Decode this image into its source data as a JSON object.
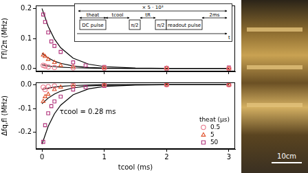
{
  "chart_data": [
    {
      "type": "scatter",
      "y_label": "Γfl/2π (MHz)",
      "xlim": [
        -0.1,
        3.1
      ],
      "xticks": [
        0,
        1,
        2,
        3
      ],
      "ylim": [
        -0.01,
        0.21
      ],
      "yticks": [
        {
          "value": 0,
          "label": "0.0"
        },
        {
          "value": 0.1,
          "label": "0.1"
        },
        {
          "value": 0.2,
          "label": "0.2"
        }
      ],
      "grid": false,
      "legend": false,
      "tick_labels": "y",
      "series": [
        {
          "color": "#e8768a",
          "marker": "circle",
          "x": [
            0.02,
            0.05,
            0.1,
            0.2,
            0.5,
            1,
            2,
            3
          ],
          "values": [
            0.01,
            0.008,
            0.005,
            0.003,
            0.002,
            0.001,
            0,
            0
          ]
        },
        {
          "color": "#e0502a",
          "marker": "triangle",
          "x": [
            0.02,
            0.05,
            0.1,
            0.2,
            0.3,
            0.5,
            1,
            2,
            3
          ],
          "values": [
            0.045,
            0.04,
            0.03,
            0.02,
            0.01,
            0.005,
            0.002,
            0.001,
            0
          ]
        },
        {
          "color": "#b0307a",
          "marker": "square",
          "x": [
            0.02,
            0.05,
            0.1,
            0.15,
            0.2,
            0.3,
            0.5,
            0.7,
            1,
            2,
            3
          ],
          "values": [
            0.18,
            0.155,
            0.12,
            0.09,
            0.075,
            0.055,
            0.02,
            0.01,
            0.005,
            0.002,
            0.003
          ]
        },
        {
          "type": "line",
          "color": "#000000",
          "line_style": "solid",
          "x": [
            0,
            0.1,
            0.2,
            0.3,
            0.5,
            0.75,
            1,
            1.5,
            2,
            3
          ],
          "values": [
            0.2,
            0.14,
            0.098,
            0.069,
            0.034,
            0.014,
            0.006,
            0.001,
            0,
            0
          ]
        },
        {
          "type": "line",
          "color": "#000000",
          "line_style": "solid",
          "x": [
            0,
            0.1,
            0.2,
            0.3,
            0.5,
            0.75,
            1,
            1.5,
            2,
            3
          ],
          "values": [
            0.05,
            0.035,
            0.024,
            0.017,
            0.008,
            0.003,
            0.001,
            0,
            0,
            0
          ]
        },
        {
          "type": "line",
          "color": "#000000",
          "line_style": "solid",
          "x": [
            0,
            0.1,
            0.2,
            0.3,
            0.5,
            0.75,
            1,
            1.5,
            2,
            3
          ],
          "values": [
            0.012,
            0.008,
            0.006,
            0.004,
            0.002,
            0.001,
            0,
            0,
            0,
            0
          ]
        }
      ]
    },
    {
      "type": "scatter",
      "x_label": "tcool (ms)",
      "y_label": "Δfq,fl (MHz)",
      "xlim": [
        -0.1,
        3.1
      ],
      "xticks": [
        0,
        1,
        2,
        3
      ],
      "ylim": [
        -0.27,
        0.01
      ],
      "yticks": [
        -0.2,
        -0.1,
        {
          "value": 0,
          "label": "0.0"
        }
      ],
      "grid": false,
      "legend": "lower right",
      "legend_title": "theat (µs)",
      "annotation": "τcool = 0.28 ms",
      "series": [
        {
          "name": "0.5",
          "color": "#e8768a",
          "marker": "circle",
          "x": [
            0.02,
            0.05,
            0.1,
            0.2,
            0.5,
            1,
            2,
            3
          ],
          "values": [
            -0.01,
            -0.02,
            -0.008,
            -0.005,
            -0.002,
            0,
            0,
            0
          ]
        },
        {
          "name": "5",
          "color": "#e0502a",
          "marker": "triangle",
          "x": [
            0.02,
            0.05,
            0.1,
            0.2,
            0.3,
            0.5,
            1,
            2,
            3
          ],
          "values": [
            -0.07,
            -0.05,
            -0.04,
            -0.02,
            -0.01,
            -0.005,
            0,
            0,
            0
          ]
        },
        {
          "name": "50",
          "color": "#b0307a",
          "marker": "square",
          "x": [
            0.02,
            0.05,
            0.1,
            0.15,
            0.2,
            0.3,
            0.5,
            0.7,
            1,
            2,
            3
          ],
          "values": [
            -0.24,
            -0.17,
            -0.12,
            -0.09,
            -0.07,
            -0.05,
            -0.02,
            -0.01,
            -0.005,
            0,
            0
          ]
        },
        {
          "type": "line",
          "color": "#000000",
          "line_style": "solid",
          "x": [
            0,
            0.1,
            0.2,
            0.3,
            0.5,
            0.75,
            1,
            1.5,
            2,
            3
          ],
          "values": [
            -0.25,
            -0.175,
            -0.122,
            -0.086,
            -0.042,
            -0.017,
            -0.007,
            -0.001,
            0,
            0
          ]
        },
        {
          "type": "line",
          "color": "#000000",
          "line_style": "solid",
          "x": [
            0,
            0.1,
            0.2,
            0.3,
            0.5,
            0.75,
            1,
            1.5,
            2,
            3
          ],
          "values": [
            -0.08,
            -0.056,
            -0.039,
            -0.027,
            -0.013,
            -0.005,
            -0.002,
            0,
            0,
            0
          ]
        },
        {
          "type": "line",
          "color": "#000000",
          "line_style": "solid",
          "x": [
            0,
            0.1,
            0.2,
            0.3,
            0.5,
            0.75,
            1,
            1.5,
            2,
            3
          ],
          "values": [
            -0.02,
            -0.014,
            -0.01,
            -0.007,
            -0.003,
            -0.001,
            0,
            0,
            0,
            0
          ]
        }
      ]
    }
  ],
  "inset": {
    "repeat": "× 5 · 10³",
    "t_heat": "theat",
    "t_cool": "tcool",
    "t_R": "tR",
    "dc_pulse": "DC pulse",
    "pulse_1": "π/2",
    "pulse_2": "π/2",
    "readout": "readout pulse",
    "wait": "2ms",
    "time_axis": "t"
  },
  "photo": {
    "scale_bar": "10cm"
  }
}
